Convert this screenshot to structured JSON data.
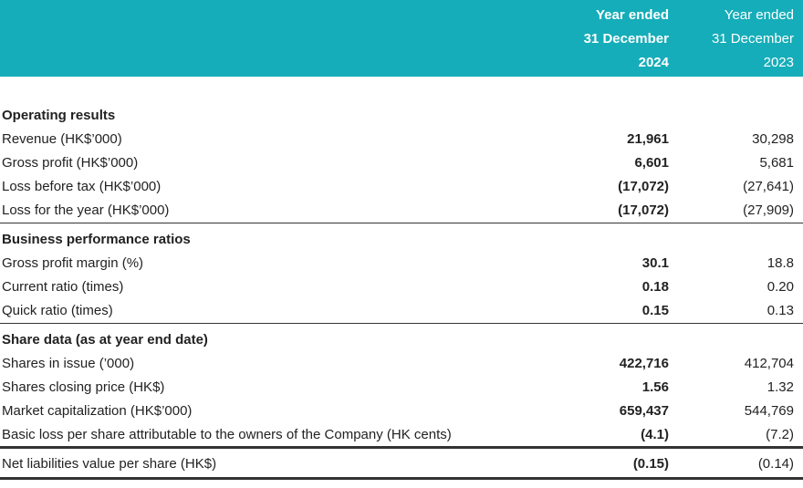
{
  "header": {
    "current": [
      "Year ended",
      "31 December",
      "2024"
    ],
    "prior": [
      "Year ended",
      "31 December",
      "2023"
    ]
  },
  "sections": [
    {
      "title": "Operating results",
      "rows": [
        [
          "Revenue (HK$’000)",
          "21,961",
          "30,298"
        ],
        [
          "Gross profit (HK$’000)",
          "6,601",
          "5,681"
        ],
        [
          "Loss before tax (HK$’000)",
          "(17,072)",
          "(27,641)"
        ],
        [
          "Loss for the year (HK$’000)",
          "(17,072)",
          "(27,909)"
        ]
      ]
    },
    {
      "title": "Business performance ratios",
      "rows": [
        [
          "Gross profit margin (%)",
          "30.1",
          "18.8"
        ],
        [
          "Current ratio (times)",
          "0.18",
          "0.20"
        ],
        [
          "Quick ratio (times)",
          "0.15",
          "0.13"
        ]
      ]
    },
    {
      "title": "Share data (as at year end date)",
      "rows": [
        [
          "Shares in issue (’000)",
          "422,716",
          "412,704"
        ],
        [
          "Shares closing price (HK$)",
          "1.56",
          "1.32"
        ],
        [
          "Market capitalization (HK$’000)",
          "659,437",
          "544,769"
        ],
        [
          "Basic loss per share attributable to the owners of the Company (HK cents)",
          "(4.1)",
          "(7.2)"
        ]
      ]
    }
  ],
  "footer_row": [
    "Net liabilities value per share (HK$)",
    "(0.15)",
    "(0.14)"
  ]
}
